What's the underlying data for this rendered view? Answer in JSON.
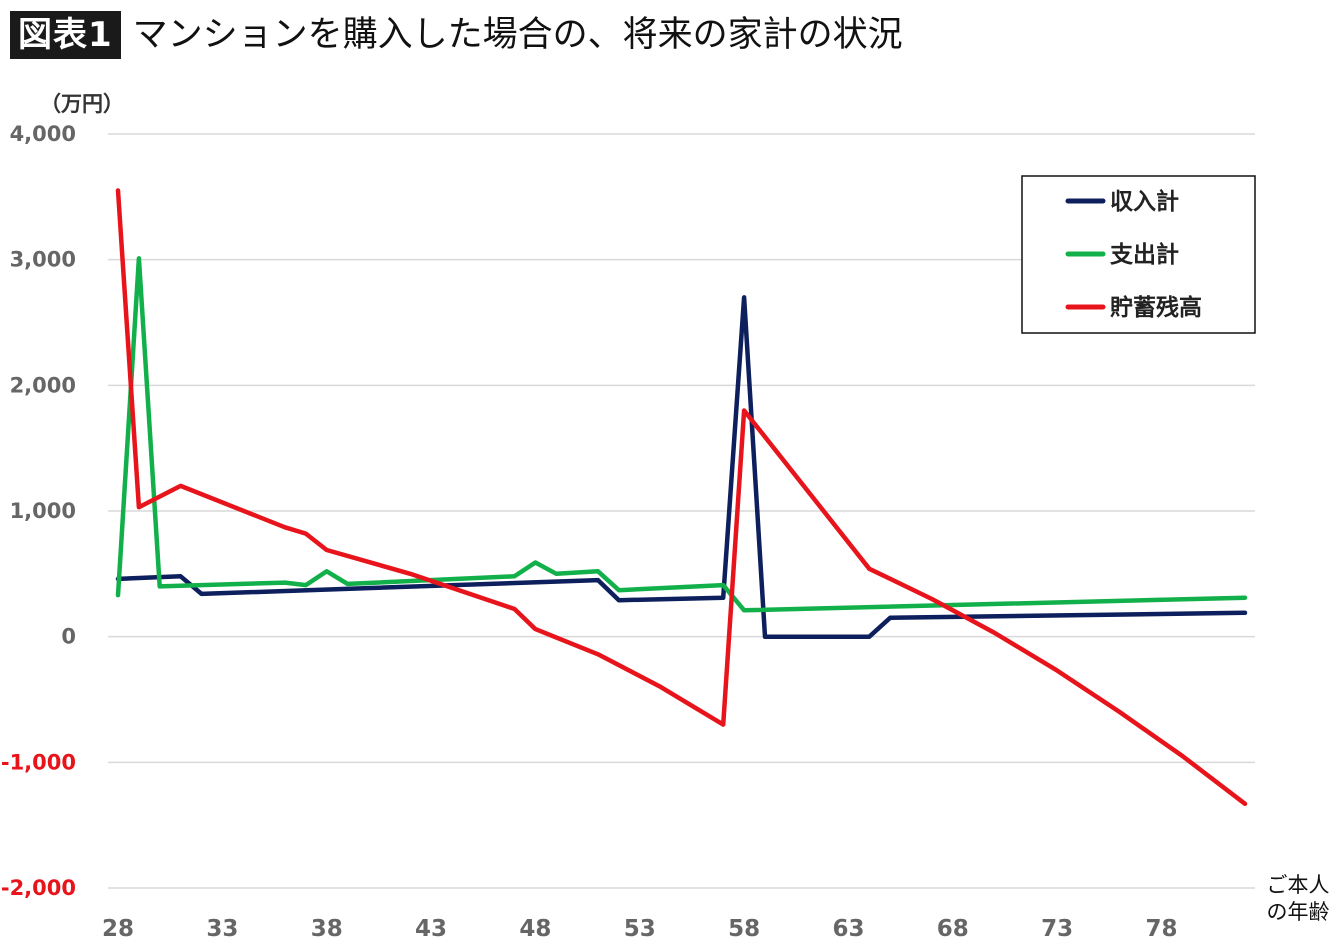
{
  "title": {
    "badge": "図表1",
    "text": "マンションを購入した場合の、将来の家計の状況"
  },
  "chart_data": {
    "type": "line",
    "unit_label": "（万円）",
    "xlabel_lines": [
      "ご本人",
      "の年齢"
    ],
    "x_ticks": [
      28,
      33,
      38,
      43,
      48,
      53,
      58,
      63,
      68,
      73,
      78
    ],
    "y_ticks": [
      4000,
      3000,
      2000,
      1000,
      0,
      -1000,
      -2000
    ],
    "y_tick_labels": [
      "4,000",
      "3,000",
      "2,000",
      "1,000",
      "0",
      "-1,000",
      "-2,000"
    ],
    "negative_tick_color": "#e8141b",
    "xlim": [
      28,
      82
    ],
    "ylim": [
      -2000,
      4000
    ],
    "grid": true,
    "legend_position": "top-right",
    "series": [
      {
        "name": "収入計",
        "color": "#0d1f5c",
        "x": [
          28,
          31,
          32,
          51,
          52,
          57,
          58,
          59,
          64,
          65,
          82
        ],
        "values": [
          460,
          480,
          340,
          450,
          290,
          310,
          2700,
          0,
          0,
          150,
          190
        ]
      },
      {
        "name": "支出計",
        "color": "#12b04a",
        "x": [
          28,
          29,
          30,
          36,
          37,
          38,
          39,
          47,
          48,
          49,
          51,
          52,
          57,
          58,
          82
        ],
        "values": [
          330,
          3010,
          400,
          430,
          410,
          520,
          420,
          480,
          590,
          500,
          520,
          370,
          410,
          210,
          310
        ]
      },
      {
        "name": "貯蓄残高",
        "color": "#e8141b",
        "x": [
          28,
          29,
          31,
          36,
          37,
          38,
          42,
          47,
          48,
          51,
          54,
          57,
          58,
          64,
          67,
          70,
          73,
          76,
          79,
          82
        ],
        "values": [
          3550,
          1030,
          1200,
          870,
          820,
          690,
          500,
          220,
          60,
          -140,
          -400,
          -700,
          1800,
          540,
          300,
          30,
          -270,
          -600,
          -950,
          -1330
        ]
      }
    ]
  }
}
